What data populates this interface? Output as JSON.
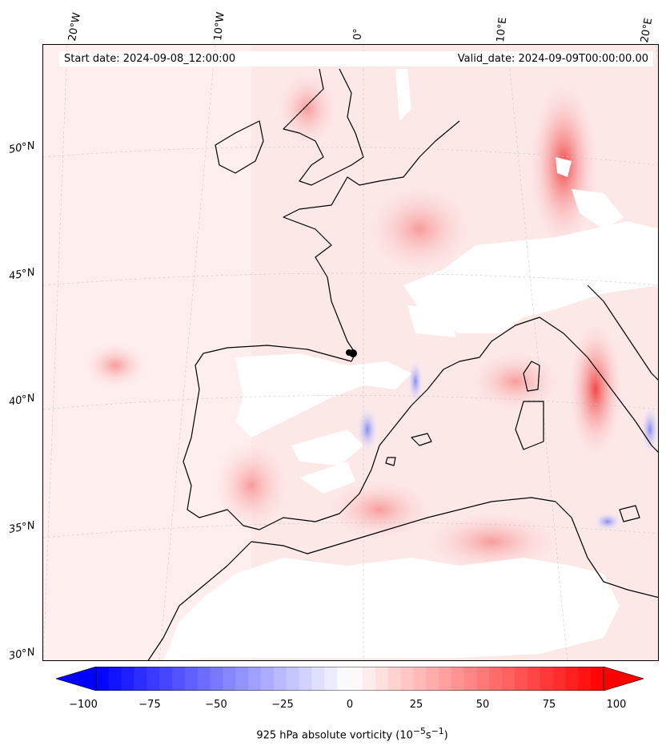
{
  "header": {
    "start_date": "Start date: 2024-09-08_12:00:00",
    "valid_date": "Valid_date: 2024-09-09T00:00:00.00"
  },
  "map": {
    "lon_labels": [
      "20°W",
      "10°W",
      "0°",
      "10°E",
      "20°E"
    ],
    "lat_labels": [
      "50°N",
      "45°N",
      "40°N",
      "35°N",
      "30°N"
    ],
    "marker_icon": "black-dot-marker"
  },
  "colorbar": {
    "ticks": [
      "−100",
      "−75",
      "−50",
      "−25",
      "0",
      "25",
      "50",
      "75",
      "100"
    ],
    "min": -100,
    "max": 100,
    "label_text": "925 hPa absolute vorticity (10",
    "label_exp1": "−5",
    "label_mid": "s",
    "label_exp2": "−1",
    "label_end": ")",
    "neg_color": "#0000ff",
    "pos_color": "#ff0000",
    "zero_color": "#ffffff"
  }
}
